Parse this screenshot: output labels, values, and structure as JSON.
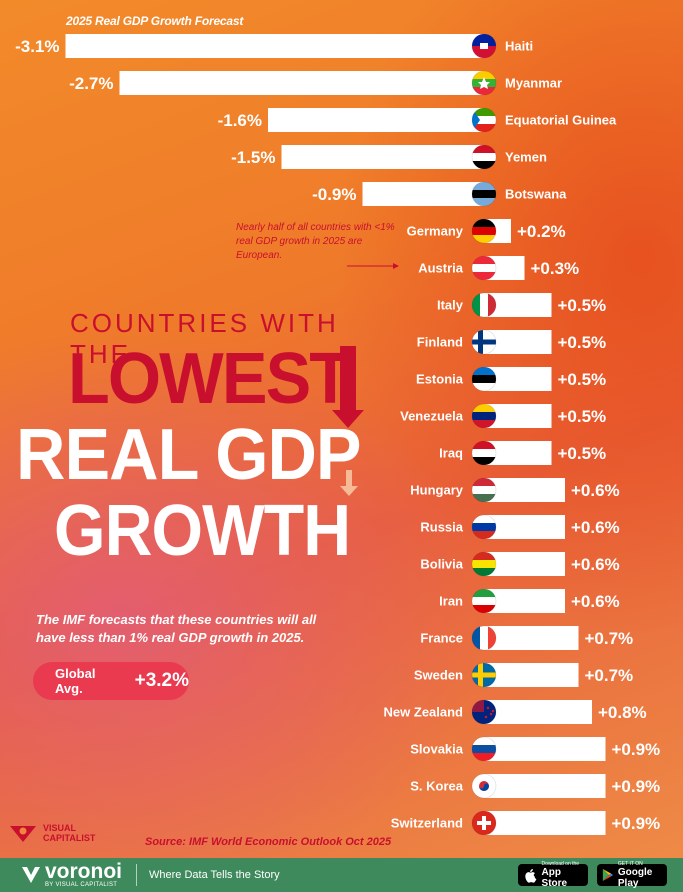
{
  "chart_data": {
    "type": "bar",
    "title": "2025 Real GDP Growth Forecast",
    "categories": [
      "Haiti",
      "Myanmar",
      "Equatorial Guinea",
      "Yemen",
      "Botswana",
      "Germany",
      "Austria",
      "Italy",
      "Finland",
      "Estonia",
      "Venezuela",
      "Iraq",
      "Hungary",
      "Russia",
      "Bolivia",
      "Iran",
      "France",
      "Sweden",
      "New Zealand",
      "Slovakia",
      "S. Korea",
      "Switzerland"
    ],
    "values": [
      -3.1,
      -2.7,
      -1.6,
      -1.5,
      -0.9,
      0.2,
      0.3,
      0.5,
      0.5,
      0.5,
      0.5,
      0.5,
      0.6,
      0.6,
      0.6,
      0.6,
      0.7,
      0.7,
      0.8,
      0.9,
      0.9,
      0.9
    ],
    "value_labels": [
      "-3.1%",
      "-2.7%",
      "-1.6%",
      "-1.5%",
      "-0.9%",
      "+0.2%",
      "+0.3%",
      "+0.5%",
      "+0.5%",
      "+0.5%",
      "+0.5%",
      "+0.5%",
      "+0.6%",
      "+0.6%",
      "+0.6%",
      "+0.6%",
      "+0.7%",
      "+0.7%",
      "+0.8%",
      "+0.9%",
      "+0.9%",
      "+0.9%"
    ],
    "flag_icons": [
      "haiti-flag-icon",
      "myanmar-flag-icon",
      "equatorial-guinea-flag-icon",
      "yemen-flag-icon",
      "botswana-flag-icon",
      "germany-flag-icon",
      "austria-flag-icon",
      "italy-flag-icon",
      "finland-flag-icon",
      "estonia-flag-icon",
      "venezuela-flag-icon",
      "iraq-flag-icon",
      "hungary-flag-icon",
      "russia-flag-icon",
      "bolivia-flag-icon",
      "iran-flag-icon",
      "france-flag-icon",
      "sweden-flag-icon",
      "new-zealand-flag-icon",
      "slovakia-flag-icon",
      "s-korea-flag-icon",
      "switzerland-flag-icon"
    ],
    "xlim": [
      -3.1,
      0.9
    ],
    "bar_color": "#ffffff",
    "label_color": "#ffffff"
  },
  "headline": {
    "line1": "COUNTRIES WITH THE",
    "line2": "LOWEST",
    "line3": "REAL GDP",
    "line4": "GROWTH"
  },
  "subtext": "The IMF forecasts that these countries will all have less than 1% real GDP growth in 2025.",
  "global_avg": {
    "label": "Global Avg.",
    "value": "+3.2%"
  },
  "annotation": "Nearly half of all countries with <1% real GDP growth in 2025 are European.",
  "source": "Source: IMF World Economic Outlook Oct 2025",
  "brand": {
    "logo_line1": "VISUAL",
    "logo_line2": "CAPITALIST"
  },
  "footer": {
    "name": "voronoi",
    "sub": "BY VISUAL CAPITALIST",
    "tagline": "Where Data Tells the Story",
    "app_store_small": "Download on the",
    "app_store": "App Store",
    "google_play_small": "GET IT ON",
    "google_play": "Google Play"
  },
  "colors": {
    "accent_red": "#c8102e",
    "pill": "#e93a50",
    "footer_green": "#3e8a5d"
  }
}
